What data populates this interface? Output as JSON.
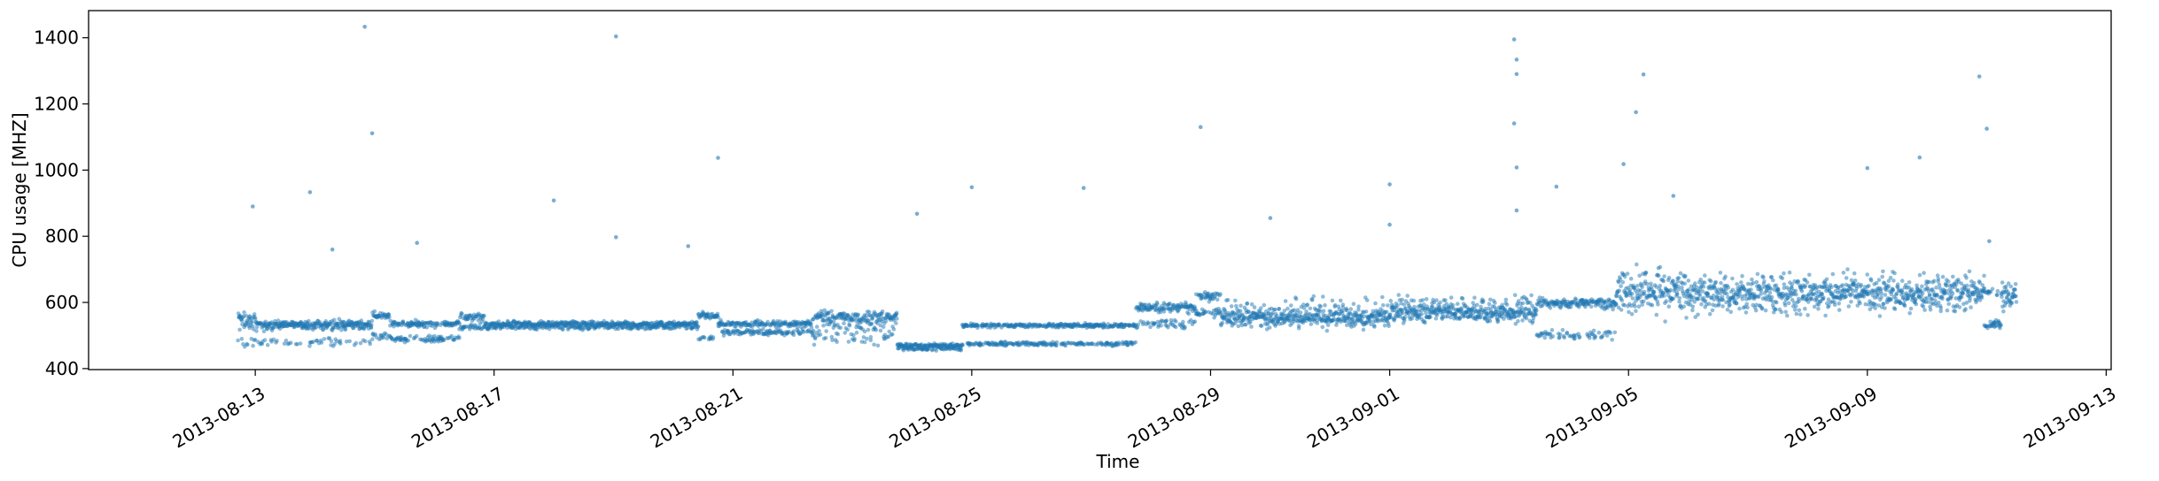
{
  "chart_data": {
    "type": "scatter",
    "title": "",
    "xlabel": "Time",
    "ylabel": "CPU usage [MHZ]",
    "xlim": [
      "2013-08-10T05:00",
      "2013-09-13T02:00"
    ],
    "ylim": [
      397,
      1482
    ],
    "x_ticks": [
      "2013-08-13",
      "2013-08-17",
      "2013-08-21",
      "2013-08-25",
      "2013-08-29",
      "2013-09-01",
      "2013-09-05",
      "2013-09-09",
      "2013-09-13"
    ],
    "y_ticks": [
      400,
      600,
      800,
      1000,
      1200,
      1400
    ],
    "grid": false,
    "color": "#1f77b4",
    "series": [
      {
        "name": "",
        "segments": [
          {
            "start": "2013-08-12T17:00",
            "end": "2013-08-13T00:00",
            "levels": [
              555,
              525,
              485
            ],
            "spread": 25
          },
          {
            "start": "2013-08-13T00:00",
            "end": "2013-08-14T23:00",
            "levels": [
              535,
              525,
              480
            ],
            "spread": 15
          },
          {
            "start": "2013-08-14T23:00",
            "end": "2013-08-15T06:00",
            "levels": [
              560,
              500
            ],
            "spread": 15
          },
          {
            "start": "2013-08-15T06:00",
            "end": "2013-08-16T10:00",
            "levels": [
              535,
              490
            ],
            "spread": 12
          },
          {
            "start": "2013-08-16T10:00",
            "end": "2013-08-16T20:00",
            "levels": [
              555,
              525
            ],
            "spread": 15
          },
          {
            "start": "2013-08-16T20:00",
            "end": "2013-08-20T10:00",
            "levels": [
              535,
              525
            ],
            "spread": 10
          },
          {
            "start": "2013-08-20T10:00",
            "end": "2013-08-20T18:00",
            "levels": [
              560,
              495
            ],
            "spread": 15
          },
          {
            "start": "2013-08-20T18:00",
            "end": "2013-08-22T08:00",
            "levels": [
              535,
              510
            ],
            "spread": 12
          },
          {
            "start": "2013-08-22T08:00",
            "end": "2013-08-23T18:00",
            "levels": [
              555,
              525,
              490
            ],
            "spread": 25
          },
          {
            "start": "2013-08-23T18:00",
            "end": "2013-08-24T20:00",
            "levels": [
              470,
              460
            ],
            "spread": 8
          },
          {
            "start": "2013-08-24T20:00",
            "end": "2013-08-27T18:00",
            "levels": [
              530,
              475
            ],
            "spread": 8
          },
          {
            "start": "2013-08-27T18:00",
            "end": "2013-08-28T18:00",
            "levels": [
              585,
              535
            ],
            "spread": 20
          },
          {
            "start": "2013-08-28T18:00",
            "end": "2013-08-29T04:00",
            "levels": [
              620,
              570
            ],
            "spread": 20
          },
          {
            "start": "2013-08-29T04:00",
            "end": "2013-09-01T00:00",
            "levels": [
              555,
              545,
              590
            ],
            "spread": 35
          },
          {
            "start": "2013-09-01T00:00",
            "end": "2013-09-03T11:00",
            "levels": [
              570,
              560,
              600
            ],
            "spread": 35
          },
          {
            "start": "2013-09-03T11:00",
            "end": "2013-09-04T19:00",
            "levels": [
              600,
              500,
              590
            ],
            "spread": 18
          },
          {
            "start": "2013-09-04T19:00",
            "end": "2013-09-06T00:00",
            "levels": [
              635,
              600,
              670
            ],
            "spread": 55
          },
          {
            "start": "2013-09-06T00:00",
            "end": "2013-09-10T23:00",
            "levels": [
              630,
              600,
              660
            ],
            "spread": 55
          },
          {
            "start": "2013-09-10T23:00",
            "end": "2013-09-11T06:00",
            "levels": [
              535,
              630
            ],
            "spread": 15
          },
          {
            "start": "2013-09-11T06:00",
            "end": "2013-09-11T12:00",
            "levels": [
              630,
              600
            ],
            "spread": 40
          }
        ],
        "outliers": [
          {
            "x": "2013-08-12T23:00",
            "y": 890
          },
          {
            "x": "2013-08-13T22:00",
            "y": 933
          },
          {
            "x": "2013-08-14T07:00",
            "y": 760
          },
          {
            "x": "2013-08-14T20:00",
            "y": 1433
          },
          {
            "x": "2013-08-14T23:00",
            "y": 1111
          },
          {
            "x": "2013-08-15T17:00",
            "y": 780
          },
          {
            "x": "2013-08-18T00:00",
            "y": 908
          },
          {
            "x": "2013-08-19T01:00",
            "y": 1404
          },
          {
            "x": "2013-08-19T01:00",
            "y": 797
          },
          {
            "x": "2013-08-20T06:00",
            "y": 770
          },
          {
            "x": "2013-08-20T18:00",
            "y": 1037
          },
          {
            "x": "2013-08-24T02:00",
            "y": 868
          },
          {
            "x": "2013-08-25T00:00",
            "y": 948
          },
          {
            "x": "2013-08-26T21:00",
            "y": 946
          },
          {
            "x": "2013-08-28T20:00",
            "y": 1130
          },
          {
            "x": "2013-08-30T00:00",
            "y": 855
          },
          {
            "x": "2013-09-01T00:00",
            "y": 957
          },
          {
            "x": "2013-09-01T00:00",
            "y": 835
          },
          {
            "x": "2013-09-03T02:00",
            "y": 1395
          },
          {
            "x": "2013-09-03T03:00",
            "y": 1334
          },
          {
            "x": "2013-09-03T03:00",
            "y": 1290
          },
          {
            "x": "2013-09-03T02:00",
            "y": 1141
          },
          {
            "x": "2013-09-03T03:00",
            "y": 1008
          },
          {
            "x": "2013-09-03T03:00",
            "y": 878
          },
          {
            "x": "2013-09-03T19:00",
            "y": 950
          },
          {
            "x": "2013-09-05T06:00",
            "y": 1289
          },
          {
            "x": "2013-09-05T03:00",
            "y": 1175
          },
          {
            "x": "2013-09-04T22:00",
            "y": 1018
          },
          {
            "x": "2013-09-05T18:00",
            "y": 922
          },
          {
            "x": "2013-09-09T00:00",
            "y": 1006
          },
          {
            "x": "2013-09-09T21:00",
            "y": 1038
          },
          {
            "x": "2013-09-10T21:00",
            "y": 1283
          },
          {
            "x": "2013-09-11T00:00",
            "y": 1125
          },
          {
            "x": "2013-09-11T01:00",
            "y": 785
          }
        ]
      }
    ]
  }
}
